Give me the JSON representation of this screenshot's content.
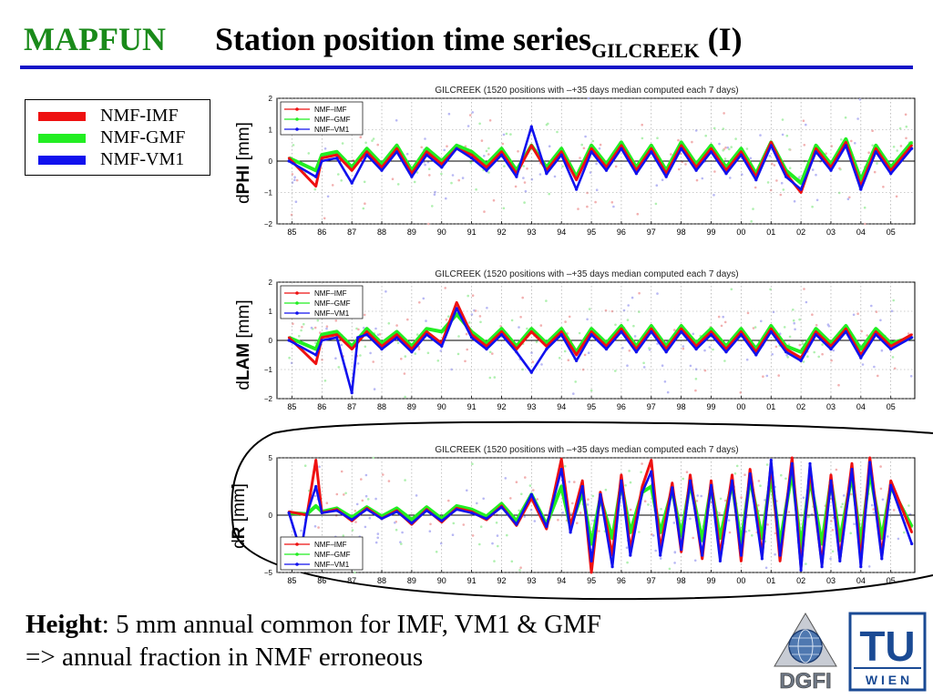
{
  "header": {
    "brand": "MAPFUN",
    "title": "Station position time series",
    "title_sub": "GILCREEK",
    "title_suffix": " (I)"
  },
  "legend": {
    "items": [
      {
        "label": "NMF-IMF",
        "color": "#ee1111"
      },
      {
        "label": "NMF-GMF",
        "color": "#22ee22"
      },
      {
        "label": "NMF-VM1",
        "color": "#1111ee"
      }
    ]
  },
  "panels": [
    {
      "ylabel_prefix": "d",
      "ylabel_bold": "PHI",
      "ylabel_unit": " [mm]"
    },
    {
      "ylabel_prefix": "d",
      "ylabel_bold": "LAM",
      "ylabel_unit": " [mm]"
    },
    {
      "ylabel_prefix": "d",
      "ylabel_bold": "R",
      "ylabel_unit": " [mm]"
    }
  ],
  "chart_data": [
    {
      "type": "line",
      "title": "GILCREEK (1520 positions with –+35 days median computed each 7 days)",
      "x_tick_labels": [
        "85",
        "86",
        "87",
        "88",
        "89",
        "90",
        "91",
        "92",
        "93",
        "94",
        "95",
        "96",
        "97",
        "98",
        "99",
        "00",
        "01",
        "02",
        "03",
        "04",
        "05"
      ],
      "x_range": [
        1984.5,
        2005.8
      ],
      "y_ticks": [
        -2,
        -1,
        0,
        1,
        2
      ],
      "ylim": [
        -2,
        2
      ],
      "grid": true,
      "legend_position": "top-left",
      "series": [
        {
          "name": "NMF-IMF",
          "color": "#ee1111",
          "x": [
            1984.9,
            1985.8,
            1986.0,
            1986.5,
            1987.0,
            1987.5,
            1988.0,
            1988.5,
            1989.0,
            1989.5,
            1990.0,
            1990.5,
            1991.0,
            1991.5,
            1992.0,
            1992.5,
            1993.0,
            1993.5,
            1994.0,
            1994.5,
            1995.0,
            1995.5,
            1996.0,
            1996.5,
            1997.0,
            1997.5,
            1998.0,
            1998.5,
            1999.0,
            1999.5,
            2000.0,
            2000.5,
            2001.0,
            2001.5,
            2002.0,
            2002.5,
            2003.0,
            2003.5,
            2004.0,
            2004.5,
            2005.0,
            2005.7
          ],
          "y": [
            0.1,
            -0.8,
            0.1,
            0.2,
            -0.3,
            0.3,
            -0.2,
            0.4,
            -0.4,
            0.3,
            -0.1,
            0.4,
            0.2,
            -0.2,
            0.3,
            -0.4,
            0.5,
            -0.3,
            0.3,
            -0.6,
            0.4,
            -0.2,
            0.5,
            -0.3,
            0.4,
            -0.4,
            0.5,
            -0.2,
            0.4,
            -0.3,
            0.3,
            -0.5,
            0.6,
            -0.4,
            -1.0,
            0.4,
            -0.2,
            0.6,
            -0.8,
            0.4,
            -0.3,
            0.5
          ]
        },
        {
          "name": "NMF-GMF",
          "color": "#22ee22",
          "x": [
            1984.9,
            1985.8,
            1986.0,
            1986.5,
            1987.0,
            1987.5,
            1988.0,
            1988.5,
            1989.0,
            1989.5,
            1990.0,
            1990.5,
            1991.0,
            1991.5,
            1992.0,
            1992.5,
            1993.0,
            1993.5,
            1994.0,
            1994.5,
            1995.0,
            1995.5,
            1996.0,
            1996.5,
            1997.0,
            1997.5,
            1998.0,
            1998.5,
            1999.0,
            1999.5,
            2000.0,
            2000.5,
            2001.0,
            2001.5,
            2002.0,
            2002.5,
            2003.0,
            2003.5,
            2004.0,
            2004.5,
            2005.0,
            2005.7
          ],
          "y": [
            0.1,
            -0.3,
            0.2,
            0.3,
            -0.2,
            0.4,
            -0.1,
            0.5,
            -0.3,
            0.4,
            0.0,
            0.5,
            0.3,
            -0.1,
            0.4,
            -0.3,
            0.5,
            -0.2,
            0.4,
            -0.5,
            0.5,
            -0.1,
            0.6,
            -0.2,
            0.5,
            -0.3,
            0.6,
            -0.1,
            0.5,
            -0.2,
            0.4,
            -0.4,
            0.6,
            -0.3,
            -0.7,
            0.5,
            -0.1,
            0.7,
            -0.6,
            0.5,
            -0.2,
            0.6
          ]
        },
        {
          "name": "NMF-VM1",
          "color": "#1111ee",
          "x": [
            1984.9,
            1985.8,
            1986.0,
            1986.5,
            1987.0,
            1987.5,
            1988.0,
            1988.5,
            1989.0,
            1989.5,
            1990.0,
            1990.5,
            1991.0,
            1991.5,
            1992.0,
            1992.5,
            1993.0,
            1993.5,
            1994.0,
            1994.5,
            1995.0,
            1995.5,
            1996.0,
            1996.5,
            1997.0,
            1997.5,
            1998.0,
            1998.5,
            1999.0,
            1999.5,
            2000.0,
            2000.5,
            2001.0,
            2001.5,
            2002.0,
            2002.5,
            2003.0,
            2003.5,
            2004.0,
            2004.5,
            2005.0,
            2005.7
          ],
          "y": [
            0.0,
            -0.5,
            0.0,
            0.1,
            -0.7,
            0.2,
            -0.3,
            0.3,
            -0.5,
            0.2,
            -0.2,
            0.4,
            0.1,
            -0.3,
            0.2,
            -0.5,
            1.1,
            -0.4,
            0.2,
            -0.9,
            0.3,
            -0.3,
            0.4,
            -0.4,
            0.3,
            -0.5,
            0.4,
            -0.3,
            0.3,
            -0.4,
            0.2,
            -0.6,
            0.5,
            -0.5,
            -0.9,
            0.3,
            -0.3,
            0.5,
            -0.9,
            0.3,
            -0.4,
            0.4
          ]
        }
      ]
    },
    {
      "type": "line",
      "title": "GILCREEK (1520 positions with –+35 days median computed each 7 days)",
      "x_tick_labels": [
        "85",
        "86",
        "87",
        "88",
        "89",
        "90",
        "91",
        "92",
        "93",
        "94",
        "95",
        "96",
        "97",
        "98",
        "99",
        "00",
        "01",
        "02",
        "03",
        "04",
        "05"
      ],
      "x_range": [
        1984.5,
        2005.8
      ],
      "y_ticks": [
        -2,
        -1,
        0,
        1,
        2
      ],
      "ylim": [
        -2,
        2
      ],
      "grid": true,
      "legend_position": "top-left",
      "series": [
        {
          "name": "NMF-IMF",
          "color": "#ee1111",
          "x": [
            1984.9,
            1985.8,
            1986.0,
            1986.5,
            1987.0,
            1987.5,
            1988.0,
            1988.5,
            1989.0,
            1989.5,
            1990.0,
            1990.5,
            1991.0,
            1991.5,
            1992.0,
            1992.5,
            1993.0,
            1993.5,
            1994.0,
            1994.5,
            1995.0,
            1995.5,
            1996.0,
            1996.5,
            1997.0,
            1997.5,
            1998.0,
            1998.5,
            1999.0,
            1999.5,
            2000.0,
            2000.5,
            2001.0,
            2001.5,
            2002.0,
            2002.5,
            2003.0,
            2003.5,
            2004.0,
            2004.5,
            2005.0,
            2005.7
          ],
          "y": [
            0.1,
            -0.8,
            0.1,
            0.2,
            -0.3,
            0.3,
            -0.2,
            0.2,
            -0.3,
            0.3,
            -0.1,
            1.3,
            0.2,
            -0.2,
            0.3,
            -0.3,
            0.3,
            -0.2,
            0.3,
            -0.5,
            0.3,
            -0.2,
            0.4,
            -0.3,
            0.4,
            -0.3,
            0.4,
            -0.2,
            0.3,
            -0.3,
            0.3,
            -0.4,
            0.4,
            -0.3,
            -0.6,
            0.3,
            -0.2,
            0.4,
            -0.5,
            0.3,
            -0.2,
            0.2
          ]
        },
        {
          "name": "NMF-GMF",
          "color": "#22ee22",
          "x": [
            1984.9,
            1985.8,
            1986.0,
            1986.5,
            1987.0,
            1987.5,
            1988.0,
            1988.5,
            1989.0,
            1989.5,
            1990.0,
            1990.5,
            1991.0,
            1991.5,
            1992.0,
            1992.5,
            1993.0,
            1993.5,
            1994.0,
            1994.5,
            1995.0,
            1995.5,
            1996.0,
            1996.5,
            1997.0,
            1997.5,
            1998.0,
            1998.5,
            1999.0,
            1999.5,
            2000.0,
            2000.5,
            2001.0,
            2001.5,
            2002.0,
            2002.5,
            2003.0,
            2003.5,
            2004.0,
            2004.5,
            2005.0,
            2005.7
          ],
          "y": [
            0.1,
            -0.3,
            0.2,
            0.3,
            -0.2,
            0.4,
            -0.1,
            0.3,
            -0.2,
            0.4,
            0.3,
            0.9,
            0.3,
            -0.1,
            0.4,
            -0.2,
            0.4,
            -0.1,
            0.4,
            -0.4,
            0.4,
            -0.1,
            0.5,
            -0.2,
            0.5,
            -0.2,
            0.5,
            -0.1,
            0.4,
            -0.2,
            0.4,
            -0.3,
            0.5,
            -0.2,
            -0.4,
            0.4,
            -0.1,
            0.5,
            -0.3,
            0.4,
            -0.1,
            0.1
          ]
        },
        {
          "name": "NMF-VM1",
          "color": "#1111ee",
          "x": [
            1984.9,
            1985.8,
            1986.0,
            1986.5,
            1987.0,
            1987.2,
            1987.5,
            1988.0,
            1988.5,
            1989.0,
            1989.5,
            1990.0,
            1990.5,
            1991.0,
            1991.5,
            1992.0,
            1992.5,
            1993.0,
            1993.5,
            1994.0,
            1994.5,
            1995.0,
            1995.5,
            1996.0,
            1996.5,
            1997.0,
            1997.5,
            1998.0,
            1998.5,
            1999.0,
            1999.5,
            2000.0,
            2000.5,
            2001.0,
            2001.5,
            2002.0,
            2002.5,
            2003.0,
            2003.5,
            2004.0,
            2004.5,
            2005.0,
            2005.7
          ],
          "y": [
            0.0,
            -0.5,
            0.0,
            0.1,
            -1.8,
            0.1,
            0.2,
            -0.3,
            0.1,
            -0.4,
            0.2,
            -0.2,
            1.1,
            0.1,
            -0.3,
            0.2,
            -0.4,
            -1.1,
            -0.3,
            0.2,
            -0.7,
            0.2,
            -0.3,
            0.3,
            -0.4,
            0.3,
            -0.4,
            0.3,
            -0.3,
            0.2,
            -0.4,
            0.2,
            -0.5,
            0.3,
            -0.4,
            -0.7,
            0.2,
            -0.3,
            0.3,
            -0.6,
            0.2,
            -0.3,
            0.1
          ]
        }
      ]
    },
    {
      "type": "line",
      "title": "GILCREEK (1520 positions with –+35 days median computed each 7 days)",
      "x_tick_labels": [
        "85",
        "86",
        "87",
        "88",
        "89",
        "90",
        "91",
        "92",
        "93",
        "94",
        "95",
        "96",
        "97",
        "98",
        "99",
        "00",
        "01",
        "02",
        "03",
        "04",
        "05"
      ],
      "x_range": [
        1984.5,
        2005.8
      ],
      "y_ticks": [
        -5,
        0,
        5
      ],
      "ylim": [
        -5,
        5
      ],
      "grid": true,
      "legend_position": "bottom-left",
      "series": [
        {
          "name": "NMF-IMF",
          "color": "#ee1111",
          "x": [
            1984.9,
            1985.5,
            1985.8,
            1986.0,
            1986.5,
            1987.0,
            1987.5,
            1988.0,
            1988.5,
            1989.0,
            1989.5,
            1990.0,
            1990.5,
            1991.0,
            1991.5,
            1992.0,
            1992.5,
            1993.0,
            1993.5,
            1994.0,
            1994.3,
            1994.7,
            1995.0,
            1995.3,
            1995.7,
            1996.0,
            1996.3,
            1996.7,
            1997.0,
            1997.3,
            1997.7,
            1998.0,
            1998.3,
            1998.7,
            1999.0,
            1999.3,
            1999.7,
            2000.0,
            2000.3,
            2000.7,
            2001.0,
            2001.3,
            2001.7,
            2002.0,
            2002.3,
            2002.7,
            2003.0,
            2003.3,
            2003.7,
            2004.0,
            2004.3,
            2004.7,
            2005.0,
            2005.7
          ],
          "y": [
            0.3,
            0.0,
            4.8,
            0.2,
            0.5,
            -0.5,
            0.6,
            -0.3,
            0.4,
            -0.8,
            0.5,
            -0.6,
            0.6,
            0.3,
            -0.4,
            0.8,
            -0.9,
            1.5,
            -1.2,
            4.9,
            -1.0,
            3.0,
            -5.0,
            2.0,
            -3.5,
            3.5,
            -3.0,
            2.5,
            4.8,
            -3.0,
            2.8,
            -3.2,
            3.5,
            -3.8,
            3.0,
            -3.5,
            3.5,
            -4.0,
            4.0,
            -3.5,
            4.5,
            -4.0,
            5.0,
            -4.5,
            4.0,
            -4.2,
            3.5,
            -3.8,
            4.5,
            -4.0,
            5.0,
            -3.5,
            3.0,
            -1.5
          ]
        },
        {
          "name": "NMF-GMF",
          "color": "#22ee22",
          "x": [
            1984.9,
            1985.5,
            1985.8,
            1986.0,
            1986.5,
            1987.0,
            1987.5,
            1988.0,
            1988.5,
            1989.0,
            1989.5,
            1990.0,
            1990.5,
            1991.0,
            1991.5,
            1992.0,
            1992.5,
            1993.0,
            1993.5,
            1994.0,
            1994.3,
            1994.7,
            1995.0,
            1995.3,
            1995.7,
            1996.0,
            1996.3,
            1996.7,
            1997.0,
            1997.3,
            1997.7,
            1998.0,
            1998.3,
            1998.7,
            1999.0,
            1999.3,
            1999.7,
            2000.0,
            2000.3,
            2000.7,
            2001.0,
            2001.3,
            2001.7,
            2002.0,
            2002.3,
            2002.7,
            2003.0,
            2003.3,
            2003.7,
            2004.0,
            2004.3,
            2004.7,
            2005.0,
            2005.7
          ],
          "y": [
            0.2,
            0.1,
            0.8,
            0.3,
            0.6,
            -0.2,
            0.7,
            -0.1,
            0.6,
            -0.4,
            0.7,
            -0.3,
            0.8,
            0.5,
            -0.1,
            1.0,
            -0.5,
            1.8,
            -0.8,
            2.5,
            -1.0,
            2.0,
            -2.5,
            1.5,
            -2.0,
            2.8,
            -1.5,
            2.0,
            2.5,
            -1.5,
            2.2,
            -1.8,
            2.8,
            -2.2,
            2.5,
            -2.0,
            2.8,
            -2.5,
            3.2,
            -2.0,
            3.5,
            -2.5,
            3.8,
            -2.8,
            3.2,
            -2.5,
            3.0,
            -2.2,
            3.5,
            -2.5,
            3.8,
            -2.0,
            2.5,
            -1.0
          ]
        },
        {
          "name": "NMF-VM1",
          "color": "#1111ee",
          "x": [
            1984.9,
            1985.3,
            1985.5,
            1985.8,
            1986.0,
            1986.5,
            1987.0,
            1987.5,
            1988.0,
            1988.5,
            1989.0,
            1989.5,
            1990.0,
            1990.5,
            1991.0,
            1991.5,
            1992.0,
            1992.5,
            1993.0,
            1993.5,
            1994.0,
            1994.3,
            1994.7,
            1995.0,
            1995.3,
            1995.7,
            1996.0,
            1996.3,
            1996.7,
            1997.0,
            1997.3,
            1997.7,
            1998.0,
            1998.3,
            1998.7,
            1999.0,
            1999.3,
            1999.7,
            2000.0,
            2000.3,
            2000.7,
            2001.0,
            2001.3,
            2001.7,
            2002.0,
            2002.3,
            2002.7,
            2003.0,
            2003.3,
            2003.7,
            2004.0,
            2004.3,
            2004.7,
            2005.0,
            2005.7
          ],
          "y": [
            0.2,
            -3.2,
            0.1,
            2.5,
            0.2,
            0.4,
            -0.4,
            0.5,
            -0.3,
            0.3,
            -0.7,
            0.4,
            -0.5,
            0.5,
            0.2,
            -0.3,
            0.7,
            -0.8,
            1.8,
            -1.0,
            4.0,
            -1.5,
            2.5,
            -4.0,
            1.8,
            -4.5,
            3.0,
            -3.5,
            2.0,
            3.8,
            -3.5,
            2.4,
            -3.0,
            3.0,
            -3.5,
            2.6,
            -4.0,
            3.0,
            -3.5,
            3.6,
            -3.8,
            4.8,
            -3.5,
            4.5,
            -4.8,
            4.5,
            -4.5,
            3.0,
            -4.0,
            4.0,
            -4.5,
            4.6,
            -3.8,
            2.6,
            -2.5
          ]
        }
      ]
    }
  ],
  "footer": {
    "height_bold": "Height",
    "height_text": ": 5 mm annual common for IMF, VM1 & GMF",
    "line2": "=> annual fraction in NMF erroneous"
  },
  "logos": {
    "dgfi_text": "DGFI",
    "tu_text": "TU",
    "wien_text": "W I E N"
  }
}
